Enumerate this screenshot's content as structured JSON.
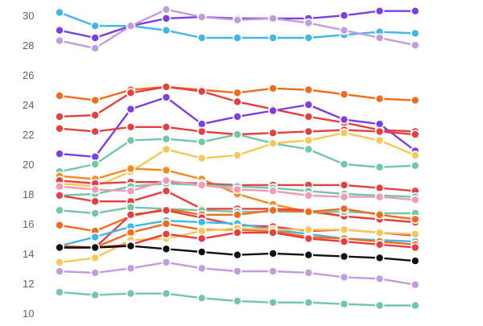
{
  "chart_data": {
    "type": "line",
    "x": [
      1,
      2,
      3,
      4,
      5,
      6,
      7,
      8,
      9,
      10,
      11,
      12
    ],
    "ylim": [
      9.5,
      30.5
    ],
    "yticks": [
      10,
      12,
      14,
      16,
      18,
      20,
      22,
      24,
      26,
      28,
      30
    ],
    "grid": false,
    "legend": "none",
    "title": "",
    "xlabel": "",
    "ylabel": "",
    "series": [
      {
        "color": "#7b3fe4",
        "values": [
          29.0,
          28.5,
          29.3,
          29.8,
          29.9,
          29.8,
          29.8,
          29.8,
          30.0,
          30.3,
          30.3,
          null
        ]
      },
      {
        "color": "#3fb7e8",
        "values": [
          30.2,
          29.3,
          29.3,
          29.0,
          28.5,
          28.5,
          28.5,
          28.5,
          28.7,
          28.9,
          28.8,
          null
        ]
      },
      {
        "color": "#c39ce0",
        "values": [
          28.3,
          27.8,
          29.3,
          30.4,
          29.9,
          29.7,
          29.8,
          29.5,
          29.0,
          28.5,
          28.0,
          null
        ]
      },
      {
        "color": "#f26b1d",
        "values": [
          24.6,
          24.3,
          25.0,
          25.2,
          25.0,
          24.8,
          25.1,
          25.0,
          24.7,
          24.4,
          24.3,
          null
        ]
      },
      {
        "color": "#e63f3f",
        "values": [
          23.2,
          23.3,
          24.8,
          25.2,
          24.9,
          24.2,
          23.7,
          23.2,
          22.8,
          22.3,
          22.2,
          null
        ]
      },
      {
        "color": "#7b3fe4",
        "values": [
          20.7,
          20.5,
          23.7,
          24.5,
          22.7,
          23.2,
          23.6,
          24.0,
          23.0,
          22.7,
          20.9,
          null
        ]
      },
      {
        "color": "#e63f3f",
        "values": [
          22.4,
          22.2,
          22.5,
          22.5,
          22.2,
          22.0,
          22.1,
          22.2,
          22.3,
          22.2,
          22.0,
          null
        ]
      },
      {
        "color": "#72c7a6",
        "values": [
          19.5,
          20.0,
          21.6,
          21.7,
          21.5,
          22.0,
          21.4,
          21.0,
          20.0,
          19.8,
          19.9,
          null
        ]
      },
      {
        "color": "#f5c85a",
        "values": [
          18.7,
          18.5,
          19.5,
          21.0,
          20.4,
          20.6,
          21.4,
          21.6,
          22.1,
          21.6,
          20.6,
          null
        ]
      },
      {
        "color": "#f28c1d",
        "values": [
          19.2,
          19.0,
          19.7,
          19.6,
          19.0,
          18.0,
          17.3,
          16.8,
          16.5,
          16.3,
          16.1,
          null
        ]
      },
      {
        "color": "#e63f3f",
        "values": [
          18.9,
          18.7,
          18.8,
          18.8,
          18.7,
          18.6,
          18.6,
          18.6,
          18.6,
          18.4,
          18.2,
          null
        ]
      },
      {
        "color": "#72c7a6",
        "values": [
          17.9,
          18.0,
          18.5,
          18.7,
          18.6,
          18.5,
          18.4,
          18.2,
          18.0,
          17.9,
          17.8,
          null
        ]
      },
      {
        "color": "#f29ab3",
        "values": [
          18.5,
          18.3,
          18.2,
          18.9,
          18.6,
          18.3,
          18.2,
          17.9,
          17.8,
          17.8,
          17.6,
          null
        ]
      },
      {
        "color": "#e63f3f",
        "values": [
          17.9,
          17.5,
          17.5,
          18.2,
          17.0,
          17.0,
          17.0,
          16.9,
          16.5,
          16.3,
          16.1,
          null
        ]
      },
      {
        "color": "#72c7a6",
        "values": [
          16.9,
          16.7,
          17.1,
          17.0,
          16.9,
          16.8,
          16.8,
          16.8,
          16.8,
          16.7,
          16.7,
          null
        ]
      },
      {
        "color": "#f26b1d",
        "values": [
          15.9,
          15.5,
          16.5,
          17.0,
          16.6,
          16.6,
          16.9,
          16.8,
          17.0,
          16.6,
          16.3,
          null
        ]
      },
      {
        "color": "#e63f3f",
        "values": [
          14.4,
          14.4,
          16.6,
          16.9,
          16.4,
          15.9,
          15.8,
          15.5,
          15.6,
          15.4,
          15.2,
          null
        ]
      },
      {
        "color": "#3fb7e8",
        "values": [
          14.5,
          15.1,
          15.8,
          16.2,
          16.1,
          16.0,
          15.6,
          15.3,
          15.0,
          14.9,
          14.8,
          null
        ]
      },
      {
        "color": "#f26b1d",
        "values": [
          14.5,
          14.4,
          15.4,
          16.0,
          15.6,
          15.6,
          15.5,
          15.1,
          15.0,
          14.8,
          14.6,
          null
        ]
      },
      {
        "color": "#f5c85a",
        "values": [
          13.4,
          13.7,
          14.9,
          15.0,
          15.5,
          15.7,
          15.6,
          15.6,
          15.6,
          15.4,
          15.3,
          null
        ]
      },
      {
        "color": "#e63f3f",
        "values": [
          14.4,
          14.4,
          14.6,
          15.3,
          15.0,
          15.4,
          15.4,
          15.0,
          14.8,
          14.6,
          14.4,
          null
        ]
      },
      {
        "color": "#111111",
        "values": [
          14.4,
          14.4,
          14.5,
          14.3,
          14.1,
          13.9,
          14.0,
          13.9,
          13.8,
          13.7,
          13.5,
          null
        ]
      },
      {
        "color": "#c39ce0",
        "values": [
          12.8,
          12.7,
          13.0,
          13.4,
          13.0,
          12.8,
          12.8,
          12.7,
          12.4,
          12.3,
          11.9,
          null
        ]
      },
      {
        "color": "#72c7a6",
        "values": [
          11.4,
          11.2,
          11.3,
          11.3,
          11.0,
          10.8,
          10.7,
          10.7,
          10.6,
          10.5,
          10.5,
          null
        ]
      }
    ]
  }
}
